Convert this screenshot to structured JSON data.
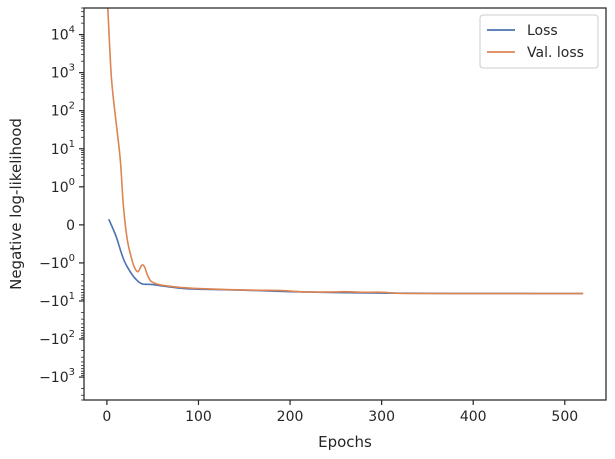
{
  "chart_data": {
    "type": "line",
    "title": "",
    "xlabel": "Epochs",
    "ylabel": "Negative log-likelihood",
    "xlim": [
      -25,
      545
    ],
    "y_scale": "symlog",
    "ylim": [
      -4000,
      50000
    ],
    "grid": false,
    "legend_position": "top-right",
    "x_ticks": [
      0,
      100,
      200,
      300,
      400,
      500
    ],
    "y_ticks": [
      {
        "value": 10000,
        "base": "10",
        "exp": "4"
      },
      {
        "value": 1000,
        "base": "10",
        "exp": "3"
      },
      {
        "value": 100,
        "base": "10",
        "exp": "2"
      },
      {
        "value": 10,
        "base": "10",
        "exp": "1"
      },
      {
        "value": 1,
        "base": "10",
        "exp": "0"
      },
      {
        "value": 0,
        "base": "0",
        "exp": ""
      },
      {
        "value": -1,
        "base": "−10",
        "exp": "0"
      },
      {
        "value": -10,
        "base": "−10",
        "exp": "1"
      },
      {
        "value": -100,
        "base": "−10",
        "exp": "2"
      },
      {
        "value": -1000,
        "base": "−10",
        "exp": "3"
      }
    ],
    "series": [
      {
        "name": "Loss",
        "color": "#4c72b0",
        "x": [
          2,
          10,
          20,
          35,
          50,
          80,
          100,
          150,
          200,
          250,
          300,
          350,
          400,
          450,
          500,
          520
        ],
        "y": [
          0.15,
          -0.3,
          -1.0,
          -3.2,
          -3.7,
          -4.6,
          -4.9,
          -5.2,
          -5.7,
          -6.0,
          -6.2,
          -6.3,
          -6.35,
          -6.35,
          -6.4,
          -6.4
        ]
      },
      {
        "name": "Val. loss",
        "color": "#dd8452",
        "x": [
          1,
          3,
          5,
          8,
          12,
          15,
          18,
          22,
          26,
          30,
          34,
          38,
          41,
          44,
          48,
          55,
          65,
          80,
          100,
          130,
          160,
          190,
          200,
          220,
          250,
          260,
          280,
          300,
          320,
          350,
          400,
          450,
          500,
          520
        ],
        "y": [
          50000,
          5000,
          700,
          130,
          20,
          4,
          0.5,
          -0.35,
          -0.8,
          -1.3,
          -1.7,
          -1.15,
          -1.25,
          -2.0,
          -3.0,
          -3.6,
          -4.0,
          -4.4,
          -4.7,
          -5.0,
          -5.2,
          -5.3,
          -5.5,
          -5.8,
          -5.8,
          -5.7,
          -5.9,
          -5.9,
          -6.3,
          -6.35,
          -6.4,
          -6.4,
          -6.4,
          -6.4
        ]
      }
    ]
  }
}
